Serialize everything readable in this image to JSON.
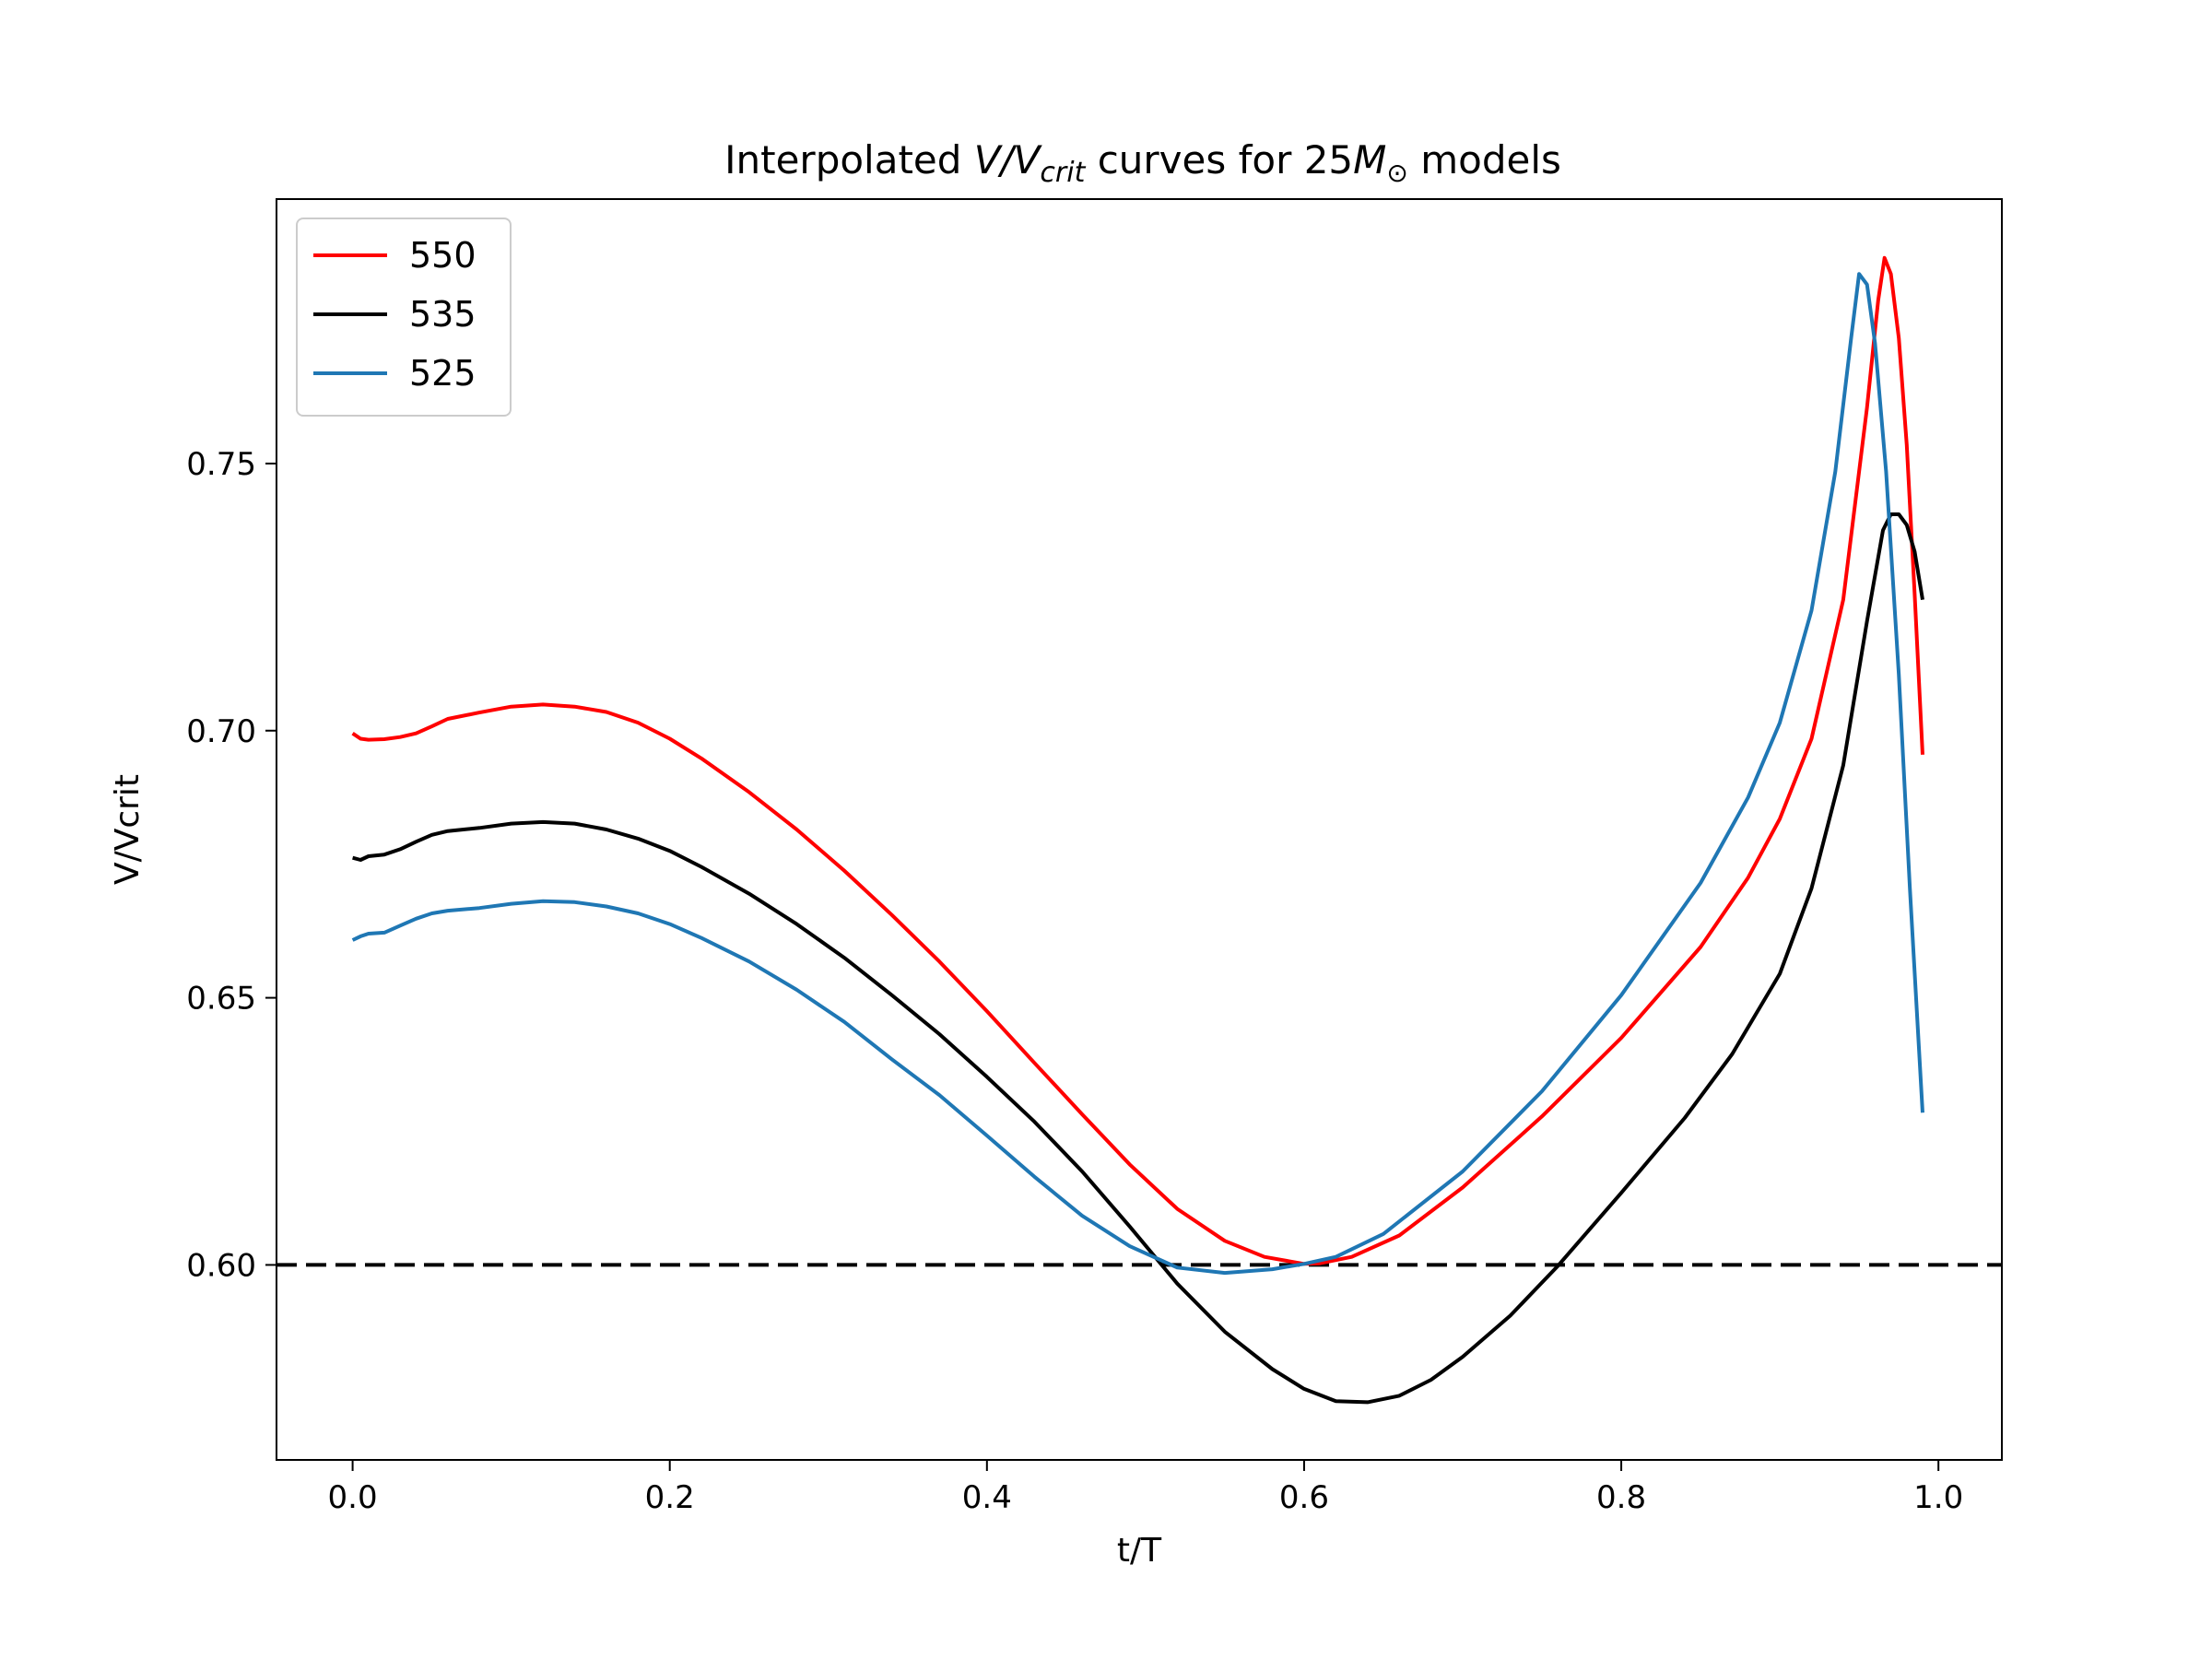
{
  "chart_data": {
    "type": "line",
    "title": {
      "prefix": "Interpolated ",
      "var1": "V",
      "sep": "/",
      "var2": "V",
      "subscript": "crit",
      "middle": " curves for 25",
      "mass_var": "M",
      "mass_sub": "⊙",
      "suffix": " models"
    },
    "xlabel": "t/T",
    "ylabel": "V/Vcrit",
    "xlim": [
      -0.048,
      1.04
    ],
    "ylim": [
      0.5635,
      0.7995
    ],
    "xticks": [
      0.0,
      0.2,
      0.4,
      0.6,
      0.8,
      1.0
    ],
    "xtick_labels": [
      "0.0",
      "0.2",
      "0.4",
      "0.6",
      "0.8",
      "1.0"
    ],
    "yticks": [
      0.6,
      0.65,
      0.7,
      0.75
    ],
    "ytick_labels": [
      "0.60",
      "0.65",
      "0.70",
      "0.75"
    ],
    "grid": false,
    "legend_position": "top-left",
    "reference_line": {
      "y": 0.6,
      "style": "dashed",
      "color": "#000000"
    },
    "series": [
      {
        "name": "550",
        "color": "#ff0000",
        "points": [
          [
            0.0,
            0.6995
          ],
          [
            0.005,
            0.6985
          ],
          [
            0.01,
            0.6983
          ],
          [
            0.02,
            0.6984
          ],
          [
            0.03,
            0.6988
          ],
          [
            0.04,
            0.6995
          ],
          [
            0.05,
            0.7008
          ],
          [
            0.06,
            0.7022
          ],
          [
            0.08,
            0.7034
          ],
          [
            0.1,
            0.7045
          ],
          [
            0.12,
            0.7049
          ],
          [
            0.14,
            0.7045
          ],
          [
            0.16,
            0.7035
          ],
          [
            0.18,
            0.7015
          ],
          [
            0.2,
            0.6985
          ],
          [
            0.22,
            0.6948
          ],
          [
            0.25,
            0.6885
          ],
          [
            0.28,
            0.6815
          ],
          [
            0.31,
            0.6738
          ],
          [
            0.34,
            0.6655
          ],
          [
            0.37,
            0.6568
          ],
          [
            0.4,
            0.6475
          ],
          [
            0.43,
            0.6378
          ],
          [
            0.46,
            0.6282
          ],
          [
            0.49,
            0.6188
          ],
          [
            0.52,
            0.6105
          ],
          [
            0.55,
            0.6045
          ],
          [
            0.575,
            0.6015
          ],
          [
            0.6,
            0.6002
          ],
          [
            0.61,
            0.6003
          ],
          [
            0.63,
            0.6015
          ],
          [
            0.66,
            0.6055
          ],
          [
            0.7,
            0.6145
          ],
          [
            0.75,
            0.6278
          ],
          [
            0.8,
            0.6425
          ],
          [
            0.85,
            0.6595
          ],
          [
            0.88,
            0.6725
          ],
          [
            0.9,
            0.6835
          ],
          [
            0.92,
            0.6985
          ],
          [
            0.94,
            0.7245
          ],
          [
            0.955,
            0.7605
          ],
          [
            0.962,
            0.7805
          ],
          [
            0.966,
            0.7885
          ],
          [
            0.97,
            0.7855
          ],
          [
            0.975,
            0.7735
          ],
          [
            0.98,
            0.7535
          ],
          [
            0.985,
            0.7255
          ],
          [
            0.99,
            0.6955
          ]
        ]
      },
      {
        "name": "535",
        "color": "#000000",
        "points": [
          [
            0.0,
            0.6762
          ],
          [
            0.005,
            0.6758
          ],
          [
            0.01,
            0.6765
          ],
          [
            0.02,
            0.6768
          ],
          [
            0.03,
            0.6778
          ],
          [
            0.04,
            0.6792
          ],
          [
            0.05,
            0.6805
          ],
          [
            0.06,
            0.6812
          ],
          [
            0.08,
            0.6818
          ],
          [
            0.1,
            0.6826
          ],
          [
            0.12,
            0.6829
          ],
          [
            0.14,
            0.6826
          ],
          [
            0.16,
            0.6815
          ],
          [
            0.18,
            0.6798
          ],
          [
            0.2,
            0.6775
          ],
          [
            0.22,
            0.6745
          ],
          [
            0.25,
            0.6695
          ],
          [
            0.28,
            0.6638
          ],
          [
            0.31,
            0.6575
          ],
          [
            0.34,
            0.6505
          ],
          [
            0.37,
            0.6432
          ],
          [
            0.4,
            0.6352
          ],
          [
            0.43,
            0.6268
          ],
          [
            0.46,
            0.6175
          ],
          [
            0.49,
            0.6072
          ],
          [
            0.52,
            0.5965
          ],
          [
            0.55,
            0.5875
          ],
          [
            0.58,
            0.5805
          ],
          [
            0.6,
            0.5768
          ],
          [
            0.62,
            0.5745
          ],
          [
            0.64,
            0.5743
          ],
          [
            0.66,
            0.5755
          ],
          [
            0.68,
            0.5785
          ],
          [
            0.7,
            0.5828
          ],
          [
            0.73,
            0.5905
          ],
          [
            0.76,
            0.5998
          ],
          [
            0.8,
            0.6135
          ],
          [
            0.84,
            0.6275
          ],
          [
            0.87,
            0.6395
          ],
          [
            0.9,
            0.6545
          ],
          [
            0.92,
            0.6705
          ],
          [
            0.94,
            0.6935
          ],
          [
            0.955,
            0.7205
          ],
          [
            0.965,
            0.7375
          ],
          [
            0.97,
            0.7405
          ],
          [
            0.975,
            0.7405
          ],
          [
            0.98,
            0.7385
          ],
          [
            0.985,
            0.7335
          ],
          [
            0.99,
            0.7245
          ]
        ]
      },
      {
        "name": "525",
        "color": "#1f77b4",
        "points": [
          [
            0.0,
            0.6608
          ],
          [
            0.005,
            0.6615
          ],
          [
            0.01,
            0.662
          ],
          [
            0.02,
            0.6622
          ],
          [
            0.03,
            0.6635
          ],
          [
            0.04,
            0.6648
          ],
          [
            0.05,
            0.6658
          ],
          [
            0.06,
            0.6663
          ],
          [
            0.08,
            0.6668
          ],
          [
            0.1,
            0.6676
          ],
          [
            0.12,
            0.6681
          ],
          [
            0.14,
            0.6679
          ],
          [
            0.16,
            0.6671
          ],
          [
            0.18,
            0.6658
          ],
          [
            0.2,
            0.6638
          ],
          [
            0.22,
            0.6612
          ],
          [
            0.25,
            0.6568
          ],
          [
            0.28,
            0.6515
          ],
          [
            0.31,
            0.6455
          ],
          [
            0.34,
            0.6385
          ],
          [
            0.37,
            0.6318
          ],
          [
            0.4,
            0.6242
          ],
          [
            0.43,
            0.6165
          ],
          [
            0.46,
            0.6092
          ],
          [
            0.49,
            0.6035
          ],
          [
            0.52,
            0.5995
          ],
          [
            0.55,
            0.5985
          ],
          [
            0.58,
            0.5992
          ],
          [
            0.6,
            0.6002
          ],
          [
            0.62,
            0.6015
          ],
          [
            0.65,
            0.6058
          ],
          [
            0.7,
            0.6175
          ],
          [
            0.75,
            0.6325
          ],
          [
            0.8,
            0.6505
          ],
          [
            0.85,
            0.6715
          ],
          [
            0.88,
            0.6875
          ],
          [
            0.9,
            0.7015
          ],
          [
            0.92,
            0.7225
          ],
          [
            0.935,
            0.7485
          ],
          [
            0.945,
            0.7735
          ],
          [
            0.95,
            0.7855
          ],
          [
            0.955,
            0.7835
          ],
          [
            0.96,
            0.7725
          ],
          [
            0.967,
            0.7485
          ],
          [
            0.975,
            0.7105
          ],
          [
            0.982,
            0.6705
          ],
          [
            0.99,
            0.6285
          ]
        ]
      }
    ]
  }
}
